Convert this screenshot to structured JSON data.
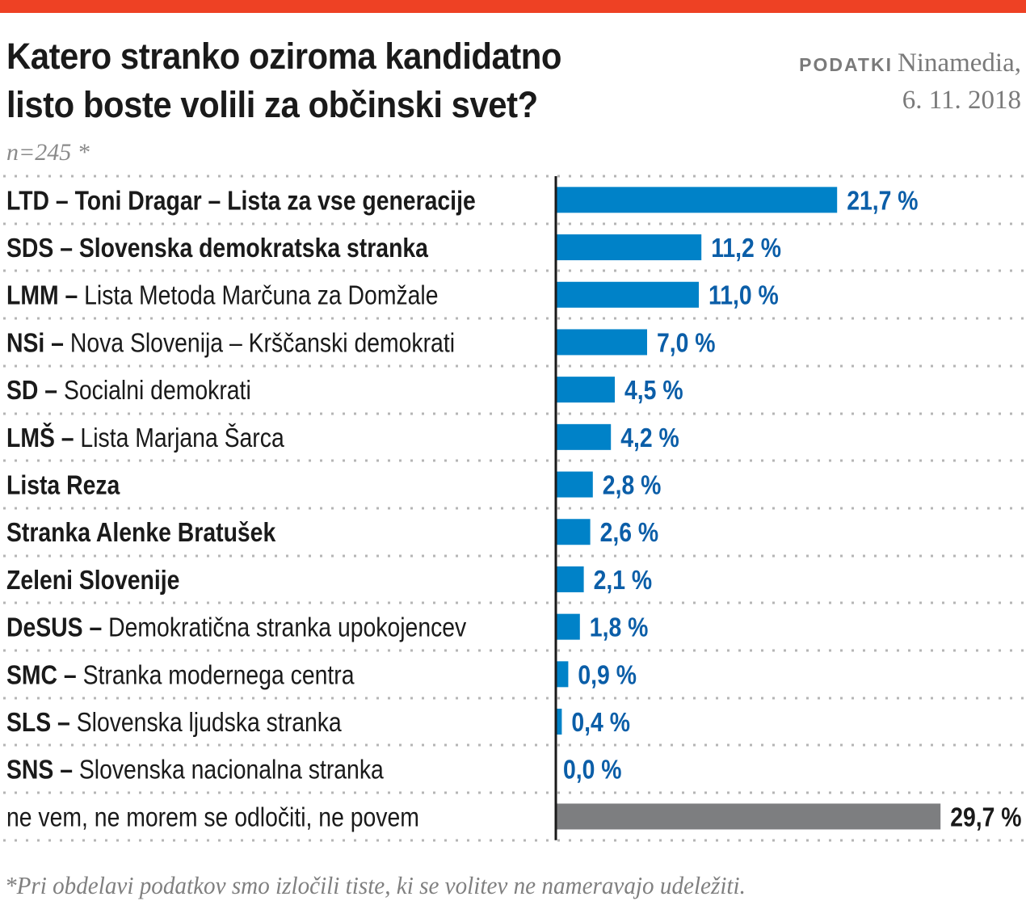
{
  "header": {
    "title_line1": "Katero stranko oziroma kandidatno",
    "title_line2": "listo boste volili za občinski svet?",
    "source_label": "PODATKI",
    "source_name": "Ninamedia,",
    "source_date": "6. 11. 2018",
    "sample": "n=245 *"
  },
  "footnote": "*Pri obdelavi podatkov smo izločili tiste, ki se volitev ne nameravajo udeležiti.",
  "colors": {
    "accent_bar": "#ee4124",
    "party_bar": "#0082c8",
    "party_value": "#0b5ea8",
    "undecided_bar": "#7d7e80",
    "undecided_value": "#1a1a1a",
    "axis": "#1a1a1a",
    "grid_dots": "#b5b5b5"
  },
  "chart_data": {
    "type": "bar",
    "orientation": "horizontal",
    "title": "Katero stranko oziroma kandidatno listo boste volili za občinski svet?",
    "subtitle": "n=245 *",
    "xlabel": "",
    "ylabel": "",
    "unit": "%",
    "xlim": [
      0,
      30
    ],
    "grid": "dotted row separators",
    "categories": [
      {
        "bold": "LTD – Toni Dragar – Lista za vse generacije",
        "rest": ""
      },
      {
        "bold": "SDS – Slovenska demokratska stranka",
        "rest": ""
      },
      {
        "bold": "LMM –",
        "rest": " Lista Metoda Marčuna za Domžale"
      },
      {
        "bold": "NSi –",
        "rest": " Nova Slovenija – Krščanski demokrati"
      },
      {
        "bold": "SD –",
        "rest": " Socialni demokrati"
      },
      {
        "bold": "LMŠ –",
        "rest": " Lista Marjana Šarca"
      },
      {
        "bold": "Lista Reza",
        "rest": ""
      },
      {
        "bold": "Stranka Alenke Bratušek",
        "rest": ""
      },
      {
        "bold": "Zeleni Slovenije",
        "rest": ""
      },
      {
        "bold": "DeSUS –",
        "rest": " Demokratična stranka upokojencev"
      },
      {
        "bold": "SMC –",
        "rest": " Stranka modernega centra"
      },
      {
        "bold": "SLS –",
        "rest": " Slovenska ljudska stranka"
      },
      {
        "bold": "SNS –",
        "rest": " Slovenska nacionalna stranka"
      },
      {
        "bold": "",
        "rest": "ne vem, ne morem se odločiti, ne povem"
      }
    ],
    "values": [
      21.7,
      11.2,
      11.0,
      7.0,
      4.5,
      4.2,
      2.8,
      2.6,
      2.1,
      1.8,
      0.9,
      0.4,
      0.0,
      29.7
    ],
    "value_labels": [
      "21,7 %",
      "11,2 %",
      "11,0 %",
      "7,0 %",
      "4,5 %",
      "4,2 %",
      "2,8 %",
      "2,6 %",
      "2,1 %",
      "1,8 %",
      "0,9 %",
      "0,4 %",
      "0,0 %",
      "29,7 %"
    ],
    "highlight": [
      false,
      false,
      false,
      false,
      false,
      false,
      false,
      false,
      false,
      false,
      false,
      false,
      false,
      true
    ]
  }
}
